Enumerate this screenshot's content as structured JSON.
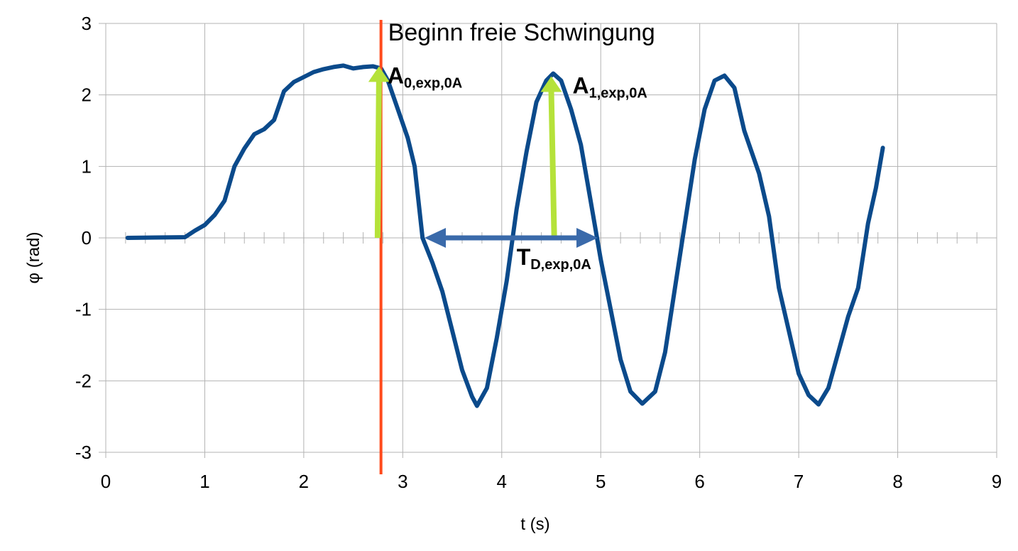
{
  "chart_data": {
    "type": "line",
    "xlabel": "t (s)",
    "ylabel": "φ (rad)",
    "xlim": [
      0,
      9
    ],
    "ylim": [
      -3,
      3
    ],
    "x_ticks": [
      0,
      1,
      2,
      3,
      4,
      5,
      6,
      7,
      8,
      9
    ],
    "y_ticks": [
      -3,
      -2,
      -1,
      0,
      1,
      2,
      3
    ],
    "grid": true,
    "series": [
      {
        "color": "#0b4a8b",
        "points": [
          [
            0.22,
            0.0
          ],
          [
            0.5,
            0.005
          ],
          [
            0.8,
            0.01
          ],
          [
            0.9,
            0.1
          ],
          [
            1.0,
            0.18
          ],
          [
            1.1,
            0.32
          ],
          [
            1.2,
            0.52
          ],
          [
            1.3,
            1.0
          ],
          [
            1.4,
            1.25
          ],
          [
            1.5,
            1.45
          ],
          [
            1.6,
            1.52
          ],
          [
            1.7,
            1.65
          ],
          [
            1.8,
            2.05
          ],
          [
            1.9,
            2.18
          ],
          [
            2.0,
            2.25
          ],
          [
            2.1,
            2.32
          ],
          [
            2.2,
            2.36
          ],
          [
            2.3,
            2.39
          ],
          [
            2.4,
            2.41
          ],
          [
            2.5,
            2.37
          ],
          [
            2.6,
            2.39
          ],
          [
            2.7,
            2.4
          ],
          [
            2.78,
            2.37
          ],
          [
            2.85,
            2.2
          ],
          [
            2.95,
            1.8
          ],
          [
            3.05,
            1.4
          ],
          [
            3.12,
            1.0
          ],
          [
            3.2,
            0.0
          ],
          [
            3.3,
            -0.35
          ],
          [
            3.4,
            -0.75
          ],
          [
            3.5,
            -1.3
          ],
          [
            3.6,
            -1.85
          ],
          [
            3.7,
            -2.22
          ],
          [
            3.75,
            -2.35
          ],
          [
            3.85,
            -2.1
          ],
          [
            3.95,
            -1.4
          ],
          [
            4.05,
            -0.6
          ],
          [
            4.15,
            0.4
          ],
          [
            4.25,
            1.2
          ],
          [
            4.35,
            1.9
          ],
          [
            4.45,
            2.2
          ],
          [
            4.52,
            2.3
          ],
          [
            4.6,
            2.2
          ],
          [
            4.7,
            1.8
          ],
          [
            4.8,
            1.3
          ],
          [
            4.9,
            0.5
          ],
          [
            5.0,
            -0.3
          ],
          [
            5.1,
            -1.0
          ],
          [
            5.2,
            -1.7
          ],
          [
            5.3,
            -2.15
          ],
          [
            5.42,
            -2.32
          ],
          [
            5.55,
            -2.15
          ],
          [
            5.65,
            -1.6
          ],
          [
            5.75,
            -0.7
          ],
          [
            5.85,
            0.2
          ],
          [
            5.95,
            1.1
          ],
          [
            6.05,
            1.8
          ],
          [
            6.15,
            2.2
          ],
          [
            6.25,
            2.27
          ],
          [
            6.35,
            2.1
          ],
          [
            6.45,
            1.5
          ],
          [
            6.6,
            0.9
          ],
          [
            6.7,
            0.3
          ],
          [
            6.8,
            -0.7
          ],
          [
            6.9,
            -1.3
          ],
          [
            7.0,
            -1.9
          ],
          [
            7.1,
            -2.2
          ],
          [
            7.2,
            -2.33
          ],
          [
            7.3,
            -2.1
          ],
          [
            7.4,
            -1.6
          ],
          [
            7.5,
            -1.1
          ],
          [
            7.6,
            -0.7
          ],
          [
            7.7,
            0.2
          ],
          [
            7.78,
            0.7
          ],
          [
            7.85,
            1.26
          ]
        ]
      }
    ],
    "annotations": {
      "start_line": {
        "x": 2.78,
        "label": "Beginn freie Schwingung",
        "color": "#ff4a1c"
      },
      "A0": {
        "x": 2.76,
        "y_from": 0,
        "y_to": 2.4,
        "main": "A",
        "sub": "0,exp,0A",
        "color": "#b5e23a"
      },
      "A1": {
        "x_from": 4.53,
        "x_to": 4.5,
        "y_from": 0,
        "y_to": 2.3,
        "main": "A",
        "sub": "1,exp,0A",
        "color": "#b5e23a"
      },
      "TD": {
        "x_from": 3.22,
        "x_to": 4.97,
        "y": 0,
        "main": "T",
        "sub": "D,exp,0A",
        "color": "#3a6aaa"
      }
    }
  }
}
